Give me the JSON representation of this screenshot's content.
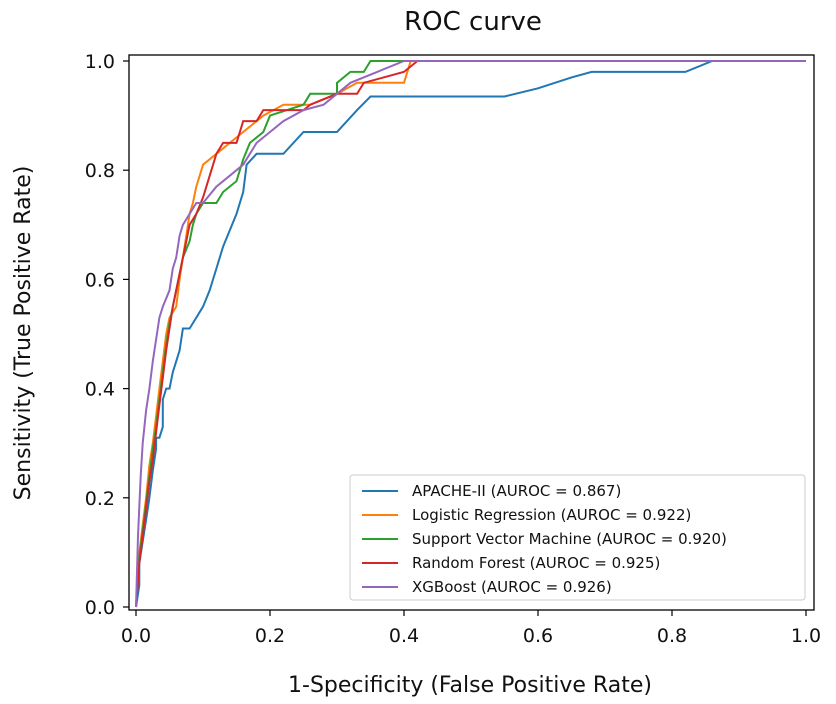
{
  "chart_data": {
    "type": "line",
    "title": "ROC curve",
    "xlabel": "1-Specificity (False Positive Rate)",
    "ylabel": "Sensitivity (True Positive Rate)",
    "xlim": [
      0.0,
      1.0
    ],
    "ylim": [
      0.0,
      1.0
    ],
    "x_ticks": [
      "0.0",
      "0.2",
      "0.4",
      "0.6",
      "0.8",
      "1.0"
    ],
    "y_ticks": [
      "0.0",
      "0.2",
      "0.4",
      "0.6",
      "0.8",
      "1.0"
    ],
    "grid": false,
    "legend_position": "lower-right",
    "series": [
      {
        "name": "APACHE-II (AUROC = 0.867)",
        "color": "#1f77b4",
        "points": [
          [
            0,
            0
          ],
          [
            0.005,
            0.04
          ],
          [
            0.005,
            0.08
          ],
          [
            0.01,
            0.12
          ],
          [
            0.015,
            0.16
          ],
          [
            0.02,
            0.2
          ],
          [
            0.025,
            0.25
          ],
          [
            0.03,
            0.29
          ],
          [
            0.03,
            0.31
          ],
          [
            0.035,
            0.31
          ],
          [
            0.04,
            0.33
          ],
          [
            0.04,
            0.38
          ],
          [
            0.045,
            0.4
          ],
          [
            0.05,
            0.4
          ],
          [
            0.055,
            0.43
          ],
          [
            0.06,
            0.45
          ],
          [
            0.065,
            0.47
          ],
          [
            0.07,
            0.51
          ],
          [
            0.08,
            0.51
          ],
          [
            0.09,
            0.53
          ],
          [
            0.1,
            0.55
          ],
          [
            0.11,
            0.58
          ],
          [
            0.12,
            0.62
          ],
          [
            0.13,
            0.66
          ],
          [
            0.14,
            0.69
          ],
          [
            0.15,
            0.72
          ],
          [
            0.16,
            0.76
          ],
          [
            0.165,
            0.81
          ],
          [
            0.18,
            0.83
          ],
          [
            0.22,
            0.83
          ],
          [
            0.25,
            0.87
          ],
          [
            0.3,
            0.87
          ],
          [
            0.33,
            0.91
          ],
          [
            0.35,
            0.935
          ],
          [
            0.55,
            0.935
          ],
          [
            0.6,
            0.95
          ],
          [
            0.65,
            0.97
          ],
          [
            0.68,
            0.98
          ],
          [
            0.82,
            0.98
          ],
          [
            0.86,
            1.0
          ],
          [
            1.0,
            1.0
          ]
        ]
      },
      {
        "name": "Logistic Regression (AUROC = 0.922)",
        "color": "#ff7f0e",
        "points": [
          [
            0,
            0
          ],
          [
            0.005,
            0.1
          ],
          [
            0.01,
            0.15
          ],
          [
            0.015,
            0.2
          ],
          [
            0.02,
            0.26
          ],
          [
            0.025,
            0.3
          ],
          [
            0.03,
            0.35
          ],
          [
            0.035,
            0.4
          ],
          [
            0.04,
            0.45
          ],
          [
            0.045,
            0.5
          ],
          [
            0.05,
            0.53
          ],
          [
            0.06,
            0.55
          ],
          [
            0.065,
            0.6
          ],
          [
            0.07,
            0.64
          ],
          [
            0.075,
            0.68
          ],
          [
            0.08,
            0.72
          ],
          [
            0.085,
            0.74
          ],
          [
            0.09,
            0.77
          ],
          [
            0.095,
            0.79
          ],
          [
            0.1,
            0.81
          ],
          [
            0.12,
            0.83
          ],
          [
            0.14,
            0.85
          ],
          [
            0.16,
            0.87
          ],
          [
            0.19,
            0.9
          ],
          [
            0.22,
            0.92
          ],
          [
            0.26,
            0.92
          ],
          [
            0.3,
            0.94
          ],
          [
            0.33,
            0.96
          ],
          [
            0.4,
            0.96
          ],
          [
            0.41,
            1.0
          ],
          [
            1.0,
            1.0
          ]
        ]
      },
      {
        "name": "Support Vector Machine (AUROC = 0.920)",
        "color": "#2ca02c",
        "points": [
          [
            0,
            0
          ],
          [
            0.005,
            0.09
          ],
          [
            0.01,
            0.14
          ],
          [
            0.015,
            0.19
          ],
          [
            0.02,
            0.24
          ],
          [
            0.025,
            0.29
          ],
          [
            0.03,
            0.33
          ],
          [
            0.035,
            0.38
          ],
          [
            0.04,
            0.43
          ],
          [
            0.045,
            0.48
          ],
          [
            0.05,
            0.52
          ],
          [
            0.055,
            0.55
          ],
          [
            0.06,
            0.58
          ],
          [
            0.065,
            0.61
          ],
          [
            0.07,
            0.64
          ],
          [
            0.08,
            0.67
          ],
          [
            0.085,
            0.7
          ],
          [
            0.09,
            0.72
          ],
          [
            0.1,
            0.74
          ],
          [
            0.12,
            0.74
          ],
          [
            0.13,
            0.76
          ],
          [
            0.15,
            0.78
          ],
          [
            0.16,
            0.82
          ],
          [
            0.17,
            0.85
          ],
          [
            0.19,
            0.87
          ],
          [
            0.2,
            0.9
          ],
          [
            0.25,
            0.92
          ],
          [
            0.26,
            0.94
          ],
          [
            0.3,
            0.94
          ],
          [
            0.3,
            0.96
          ],
          [
            0.32,
            0.98
          ],
          [
            0.34,
            0.98
          ],
          [
            0.35,
            1.0
          ],
          [
            1.0,
            1.0
          ]
        ]
      },
      {
        "name": "Random Forest (AUROC = 0.925)",
        "color": "#d62728",
        "points": [
          [
            0,
            0
          ],
          [
            0.005,
            0.08
          ],
          [
            0.01,
            0.13
          ],
          [
            0.015,
            0.18
          ],
          [
            0.02,
            0.23
          ],
          [
            0.025,
            0.27
          ],
          [
            0.03,
            0.32
          ],
          [
            0.035,
            0.37
          ],
          [
            0.04,
            0.42
          ],
          [
            0.045,
            0.47
          ],
          [
            0.05,
            0.51
          ],
          [
            0.055,
            0.55
          ],
          [
            0.06,
            0.58
          ],
          [
            0.065,
            0.61
          ],
          [
            0.07,
            0.64
          ],
          [
            0.075,
            0.67
          ],
          [
            0.08,
            0.7
          ],
          [
            0.09,
            0.72
          ],
          [
            0.1,
            0.75
          ],
          [
            0.11,
            0.79
          ],
          [
            0.12,
            0.83
          ],
          [
            0.13,
            0.85
          ],
          [
            0.15,
            0.85
          ],
          [
            0.16,
            0.89
          ],
          [
            0.18,
            0.89
          ],
          [
            0.19,
            0.91
          ],
          [
            0.25,
            0.91
          ],
          [
            0.26,
            0.92
          ],
          [
            0.3,
            0.94
          ],
          [
            0.33,
            0.94
          ],
          [
            0.34,
            0.96
          ],
          [
            0.4,
            0.98
          ],
          [
            0.42,
            1.0
          ],
          [
            1.0,
            1.0
          ]
        ]
      },
      {
        "name": "XGBoost (AUROC = 0.926)",
        "color": "#9467bd",
        "points": [
          [
            0,
            0
          ],
          [
            0.003,
            0.13
          ],
          [
            0.007,
            0.24
          ],
          [
            0.01,
            0.3
          ],
          [
            0.015,
            0.36
          ],
          [
            0.02,
            0.4
          ],
          [
            0.025,
            0.45
          ],
          [
            0.03,
            0.49
          ],
          [
            0.035,
            0.53
          ],
          [
            0.04,
            0.55
          ],
          [
            0.05,
            0.58
          ],
          [
            0.055,
            0.62
          ],
          [
            0.06,
            0.64
          ],
          [
            0.065,
            0.68
          ],
          [
            0.07,
            0.7
          ],
          [
            0.08,
            0.72
          ],
          [
            0.09,
            0.74
          ],
          [
            0.1,
            0.74
          ],
          [
            0.12,
            0.77
          ],
          [
            0.14,
            0.79
          ],
          [
            0.16,
            0.81
          ],
          [
            0.18,
            0.85
          ],
          [
            0.2,
            0.87
          ],
          [
            0.22,
            0.89
          ],
          [
            0.25,
            0.91
          ],
          [
            0.28,
            0.92
          ],
          [
            0.3,
            0.94
          ],
          [
            0.32,
            0.96
          ],
          [
            0.36,
            0.98
          ],
          [
            0.4,
            1.0
          ],
          [
            1.0,
            1.0
          ]
        ]
      }
    ]
  }
}
